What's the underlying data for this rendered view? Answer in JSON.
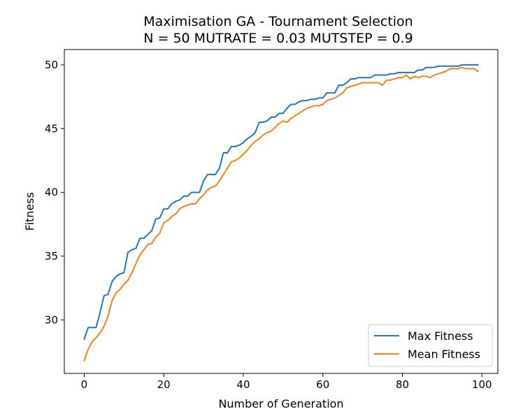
{
  "chart_data": {
    "type": "line",
    "title": "Maximisation GA - Tournament Selection",
    "subtitle": "N = 50 MUTRATE = 0.03 MUTSTEP = 0.9",
    "xlabel": "Number of Generation",
    "ylabel": "Fitness",
    "xlim": [
      -5,
      104
    ],
    "ylim": [
      25.8,
      51.2
    ],
    "xticks": [
      0,
      20,
      40,
      60,
      80,
      100
    ],
    "yticks": [
      30,
      35,
      40,
      45,
      50
    ],
    "xtick_labels": [
      "0",
      "20",
      "40",
      "60",
      "80",
      "100"
    ],
    "ytick_labels": [
      "30",
      "35",
      "40",
      "45",
      "50"
    ],
    "grid": false,
    "legend_position": "lower-right",
    "x": [
      0,
      1,
      2,
      3,
      4,
      5,
      6,
      7,
      8,
      9,
      10,
      11,
      12,
      13,
      14,
      15,
      16,
      17,
      18,
      19,
      20,
      21,
      22,
      23,
      24,
      25,
      26,
      27,
      28,
      29,
      30,
      31,
      32,
      33,
      34,
      35,
      36,
      37,
      38,
      39,
      40,
      41,
      42,
      43,
      44,
      45,
      46,
      47,
      48,
      49,
      50,
      51,
      52,
      53,
      54,
      55,
      56,
      57,
      58,
      59,
      60,
      61,
      62,
      63,
      64,
      65,
      66,
      67,
      68,
      69,
      70,
      71,
      72,
      73,
      74,
      75,
      76,
      77,
      78,
      79,
      80,
      81,
      82,
      83,
      84,
      85,
      86,
      87,
      88,
      89,
      90,
      91,
      92,
      93,
      94,
      95,
      96,
      97,
      98,
      99
    ],
    "series": [
      {
        "name": "Max Fitness",
        "color": "#1f77b4",
        "values": [
          28.5,
          29.4,
          29.4,
          29.4,
          30.6,
          31.9,
          32.0,
          33.0,
          33.4,
          33.6,
          33.7,
          35.3,
          35.5,
          35.6,
          36.4,
          36.4,
          36.7,
          37.0,
          37.9,
          38.0,
          38.7,
          38.7,
          39.1,
          39.3,
          39.4,
          39.7,
          39.7,
          40.0,
          40.0,
          40.0,
          40.9,
          41.4,
          41.4,
          41.4,
          41.9,
          43.1,
          43.1,
          43.6,
          43.6,
          43.7,
          43.9,
          44.2,
          44.4,
          44.7,
          45.5,
          45.5,
          45.6,
          45.9,
          45.9,
          46.2,
          46.2,
          46.6,
          46.9,
          46.9,
          47.1,
          47.2,
          47.2,
          47.3,
          47.3,
          47.4,
          47.4,
          47.8,
          47.8,
          47.8,
          48.4,
          48.4,
          48.6,
          48.9,
          48.9,
          49.0,
          49.0,
          49.0,
          49.0,
          49.2,
          49.2,
          49.2,
          49.2,
          49.3,
          49.3,
          49.4,
          49.4,
          49.4,
          49.4,
          49.4,
          49.6,
          49.6,
          49.8,
          49.8,
          49.8,
          49.9,
          49.9,
          49.9,
          49.9,
          49.9,
          49.9,
          50.0,
          50.0,
          50.0,
          50.0,
          50.0
        ]
      },
      {
        "name": "Mean Fitness",
        "color": "#ff7f0e",
        "values": [
          26.8,
          27.7,
          28.3,
          28.6,
          29.0,
          29.5,
          30.3,
          31.5,
          32.1,
          32.4,
          32.8,
          33.1,
          33.7,
          34.4,
          35.1,
          35.5,
          35.9,
          36.0,
          36.5,
          36.8,
          37.6,
          37.8,
          38.1,
          38.3,
          38.7,
          38.9,
          39.0,
          39.1,
          39.1,
          39.5,
          39.8,
          40.2,
          40.4,
          40.5,
          40.9,
          41.4,
          41.9,
          42.4,
          42.5,
          42.7,
          43.0,
          43.3,
          43.7,
          44.0,
          44.2,
          44.5,
          44.7,
          44.8,
          45.1,
          45.4,
          45.6,
          45.5,
          45.8,
          46.0,
          46.2,
          46.4,
          46.6,
          46.7,
          46.8,
          46.8,
          46.9,
          47.2,
          47.3,
          47.4,
          47.6,
          47.8,
          48.2,
          48.3,
          48.4,
          48.5,
          48.6,
          48.6,
          48.6,
          48.6,
          48.6,
          48.4,
          48.8,
          48.8,
          48.9,
          49.0,
          49.0,
          49.2,
          48.9,
          49.1,
          49.0,
          49.1,
          49.1,
          49.0,
          49.2,
          49.3,
          49.4,
          49.5,
          49.7,
          49.7,
          49.7,
          49.8,
          49.7,
          49.7,
          49.7,
          49.5
        ]
      }
    ]
  }
}
